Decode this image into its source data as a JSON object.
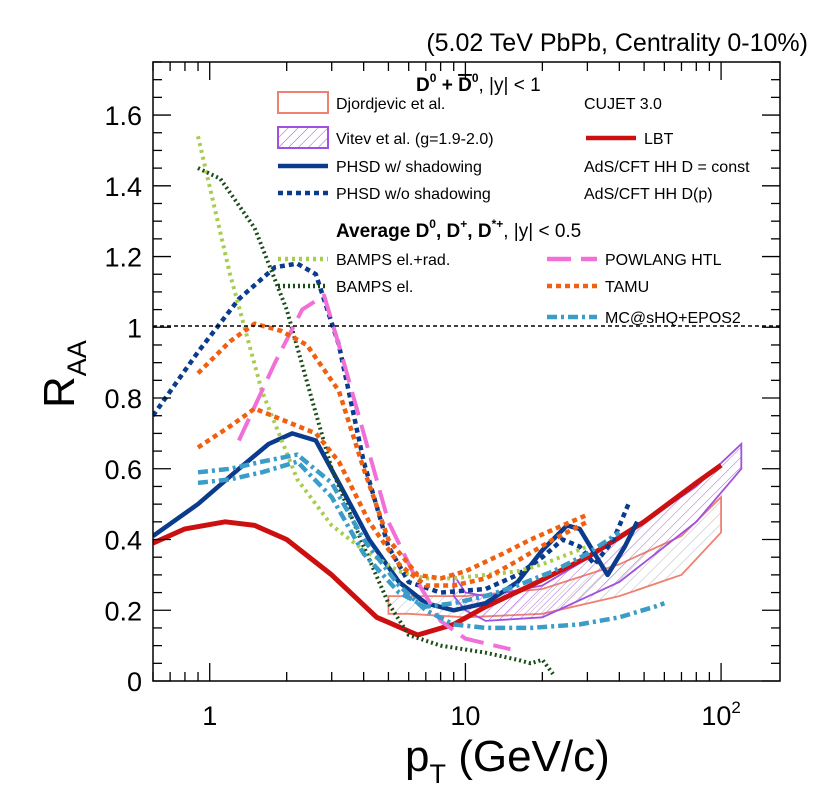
{
  "chart_data": {
    "type": "line",
    "title": "(5.02 TeV PbPb, Centrality 0-10%)",
    "xlabel": "p_T (GeV/c)",
    "ylabel": "R_AA",
    "xscale": "log",
    "xlim": [
      0.6,
      170
    ],
    "ylim": [
      0,
      1.75
    ],
    "x_ticks": [
      {
        "value": 1,
        "label": "1"
      },
      {
        "value": 10,
        "label": "10"
      },
      {
        "value": 100,
        "label": "10",
        "exponent": "2"
      }
    ],
    "y_ticks": [
      {
        "value": 0,
        "label": "0"
      },
      {
        "value": 0.2,
        "label": "0.2"
      },
      {
        "value": 0.4,
        "label": "0.4"
      },
      {
        "value": 0.6,
        "label": "0.6"
      },
      {
        "value": 0.8,
        "label": "0.8"
      },
      {
        "value": 1.0,
        "label": "1"
      },
      {
        "value": 1.2,
        "label": "1.2"
      },
      {
        "value": 1.4,
        "label": "1.4"
      },
      {
        "value": 1.6,
        "label": "1.6"
      }
    ],
    "reference_line": {
      "y": 1.0,
      "style": "dashed"
    },
    "legend_header_1": {
      "base": "D",
      "sup1": "0",
      "mid": " + ",
      "bar": "D",
      "sup2": "0",
      "tail": ", |y| < 1"
    },
    "legend_header_2": {
      "text1": "Average D",
      "s1": "0",
      "text2": ", D",
      "s2": "+",
      "text3": ", D",
      "s3": "*+",
      "text4": ", |y| < 0.5"
    },
    "series": [
      {
        "name": "Djordjevic et al.",
        "kind": "band",
        "color": "#f08070",
        "upper": [
          [
            5,
            0.24
          ],
          [
            6,
            0.24
          ],
          [
            10,
            0.24
          ],
          [
            20,
            0.26
          ],
          [
            40,
            0.33
          ],
          [
            70,
            0.41
          ],
          [
            100,
            0.52
          ]
        ],
        "lower": [
          [
            5,
            0.19
          ],
          [
            6,
            0.19
          ],
          [
            10,
            0.18
          ],
          [
            20,
            0.19
          ],
          [
            40,
            0.24
          ],
          [
            70,
            0.3
          ],
          [
            100,
            0.42
          ]
        ]
      },
      {
        "name": "Vitev et al. (g=1.9-2.0)",
        "kind": "band",
        "color": "#a050e0",
        "upper": [
          [
            9,
            0.3
          ],
          [
            10,
            0.25
          ],
          [
            12,
            0.24
          ],
          [
            20,
            0.27
          ],
          [
            40,
            0.4
          ],
          [
            80,
            0.55
          ],
          [
            120,
            0.67
          ]
        ],
        "lower": [
          [
            9,
            0.24
          ],
          [
            10,
            0.2
          ],
          [
            12,
            0.17
          ],
          [
            20,
            0.18
          ],
          [
            40,
            0.28
          ],
          [
            80,
            0.45
          ],
          [
            120,
            0.6
          ]
        ]
      },
      {
        "name": "CUJET 3.0",
        "kind": "line",
        "color": "#000000",
        "dash": "none",
        "points": []
      },
      {
        "name": "LBT",
        "kind": "line",
        "color": "#cc1010",
        "dash": "none",
        "width": 5,
        "points": [
          [
            0.6,
            0.39
          ],
          [
            0.8,
            0.43
          ],
          [
            1.15,
            0.45
          ],
          [
            1.5,
            0.44
          ],
          [
            2,
            0.4
          ],
          [
            3,
            0.3
          ],
          [
            4.5,
            0.18
          ],
          [
            6.5,
            0.13
          ],
          [
            9,
            0.16
          ],
          [
            12,
            0.21
          ],
          [
            18,
            0.27
          ],
          [
            30,
            0.35
          ],
          [
            50,
            0.45
          ],
          [
            80,
            0.56
          ],
          [
            100,
            0.61
          ]
        ]
      },
      {
        "name": "PHSD w/ shadowing",
        "kind": "line",
        "color": "#0b3b8c",
        "dash": "none",
        "width": 4.5,
        "points": [
          [
            0.6,
            0.41
          ],
          [
            0.9,
            0.5
          ],
          [
            1.3,
            0.6
          ],
          [
            1.7,
            0.67
          ],
          [
            2.1,
            0.7
          ],
          [
            2.6,
            0.68
          ],
          [
            3.2,
            0.56
          ],
          [
            4.2,
            0.4
          ],
          [
            5.5,
            0.28
          ],
          [
            7,
            0.22
          ],
          [
            9,
            0.2
          ],
          [
            12,
            0.22
          ],
          [
            16,
            0.28
          ],
          [
            20,
            0.37
          ],
          [
            25,
            0.44
          ],
          [
            28,
            0.43
          ],
          [
            32,
            0.36
          ],
          [
            36,
            0.3
          ],
          [
            42,
            0.38
          ],
          [
            47,
            0.45
          ]
        ]
      },
      {
        "name": "PHSD w/o shadowing",
        "kind": "line",
        "color": "#0b3b8c",
        "dash": "5 4",
        "width": 4.5,
        "points": [
          [
            0.6,
            0.75
          ],
          [
            0.9,
            0.93
          ],
          [
            1.3,
            1.08
          ],
          [
            1.8,
            1.17
          ],
          [
            2.2,
            1.18
          ],
          [
            2.6,
            1.15
          ],
          [
            3.2,
            0.95
          ],
          [
            4,
            0.62
          ],
          [
            5,
            0.38
          ],
          [
            6,
            0.28
          ],
          [
            8,
            0.25
          ],
          [
            12,
            0.26
          ],
          [
            16,
            0.3
          ],
          [
            20,
            0.35
          ],
          [
            24,
            0.4
          ],
          [
            28,
            0.38
          ],
          [
            32,
            0.33
          ],
          [
            38,
            0.4
          ],
          [
            44,
            0.51
          ]
        ]
      },
      {
        "name": "AdS/CFT HH D = const",
        "kind": "line",
        "color": "#000000",
        "dash": "none",
        "points": []
      },
      {
        "name": "AdS/CFT HH D(p)",
        "kind": "line",
        "color": "#000000",
        "dash": "none",
        "points": []
      },
      {
        "name": "BAMPS el.+rad.",
        "kind": "line",
        "color": "#a8cc50",
        "dash": "3 4",
        "width": 4,
        "points": [
          [
            0.9,
            1.54
          ],
          [
            1.2,
            1.15
          ],
          [
            1.6,
            0.82
          ],
          [
            2.2,
            0.57
          ],
          [
            3,
            0.44
          ],
          [
            4,
            0.37
          ],
          [
            5.5,
            0.31
          ],
          [
            7,
            0.29
          ],
          [
            9,
            0.29
          ],
          [
            12,
            0.3
          ],
          [
            16,
            0.31
          ],
          [
            20,
            0.33
          ],
          [
            30,
            0.38
          ]
        ]
      },
      {
        "name": "BAMPS el.",
        "kind": "line",
        "color": "#1a4d1a",
        "dash": "2 3",
        "width": 4,
        "points": [
          [
            0.9,
            1.45
          ],
          [
            1.1,
            1.42
          ],
          [
            1.5,
            1.28
          ],
          [
            2,
            1.05
          ],
          [
            2.5,
            0.8
          ],
          [
            3,
            0.6
          ],
          [
            4,
            0.38
          ],
          [
            5,
            0.22
          ],
          [
            6,
            0.13
          ],
          [
            8,
            0.1
          ],
          [
            12,
            0.08
          ],
          [
            16,
            0.06
          ],
          [
            18,
            0.05
          ],
          [
            20,
            0.06
          ],
          [
            22,
            0.02
          ]
        ]
      },
      {
        "name": "POWLANG HTL",
        "kind": "line",
        "color": "#f070d8",
        "dash": "24 10",
        "width": 4,
        "points": [
          [
            1.3,
            0.68
          ],
          [
            1.8,
            0.9
          ],
          [
            2.3,
            1.05
          ],
          [
            2.8,
            1.09
          ],
          [
            3.2,
            0.95
          ],
          [
            4,
            0.7
          ],
          [
            5,
            0.45
          ],
          [
            6.5,
            0.28
          ],
          [
            8,
            0.17
          ],
          [
            10,
            0.12
          ],
          [
            13,
            0.1
          ],
          [
            15,
            0.09
          ]
        ]
      },
      {
        "name": "TAMU",
        "kind": "line",
        "color": "#f06010",
        "dash": "5 4",
        "width": 4.5,
        "points": [
          [
            0.9,
            0.66
          ],
          [
            1.2,
            0.72
          ],
          [
            1.5,
            0.77
          ],
          [
            1.9,
            0.74
          ],
          [
            2.6,
            0.7
          ],
          [
            3.2,
            0.62
          ],
          [
            4.2,
            0.45
          ],
          [
            5.5,
            0.33
          ],
          [
            7,
            0.27
          ],
          [
            9,
            0.27
          ],
          [
            12,
            0.29
          ],
          [
            16,
            0.34
          ],
          [
            22,
            0.4
          ],
          [
            30,
            0.45
          ]
        ]
      },
      {
        "name": "TAMU",
        "kind": "line",
        "color": "#f06010",
        "dash": "5 4",
        "width": 4.5,
        "no_legend": true,
        "points": [
          [
            0.9,
            0.87
          ],
          [
            1.2,
            0.96
          ],
          [
            1.5,
            1.01
          ],
          [
            1.9,
            0.99
          ],
          [
            2.4,
            0.95
          ],
          [
            3.2,
            0.82
          ],
          [
            4,
            0.6
          ],
          [
            5,
            0.4
          ],
          [
            6.5,
            0.3
          ],
          [
            8,
            0.29
          ],
          [
            10,
            0.31
          ],
          [
            14,
            0.36
          ],
          [
            18,
            0.4
          ],
          [
            24,
            0.44
          ],
          [
            30,
            0.47
          ]
        ]
      },
      {
        "name": "MC@sHQ+EPOS2",
        "kind": "line",
        "color": "#3a9cc8",
        "dash": "10 4 3 4",
        "width": 4.5,
        "points": [
          [
            0.9,
            0.59
          ],
          [
            1.2,
            0.6
          ],
          [
            1.6,
            0.62
          ],
          [
            2.2,
            0.64
          ],
          [
            3,
            0.56
          ],
          [
            4,
            0.4
          ],
          [
            5.5,
            0.27
          ],
          [
            7,
            0.2
          ],
          [
            9,
            0.16
          ],
          [
            12,
            0.15
          ],
          [
            18,
            0.15
          ],
          [
            28,
            0.16
          ],
          [
            40,
            0.18
          ],
          [
            55,
            0.21
          ],
          [
            60,
            0.22
          ]
        ]
      },
      {
        "name": "MC@sHQ+EPOS2",
        "kind": "line",
        "color": "#3a9cc8",
        "dash": "10 4 3 4",
        "width": 4.5,
        "no_legend": true,
        "points": [
          [
            0.9,
            0.56
          ],
          [
            1.2,
            0.57
          ],
          [
            1.6,
            0.59
          ],
          [
            2.2,
            0.62
          ],
          [
            3,
            0.52
          ],
          [
            4,
            0.36
          ],
          [
            5.5,
            0.25
          ],
          [
            7,
            0.21
          ],
          [
            9,
            0.22
          ],
          [
            12,
            0.24
          ],
          [
            16,
            0.27
          ],
          [
            22,
            0.31
          ],
          [
            30,
            0.36
          ],
          [
            40,
            0.42
          ]
        ]
      }
    ],
    "legend": [
      {
        "label": "Djordjevic et al.",
        "swatch": "box",
        "color": "#f08070"
      },
      {
        "label": "CUJET 3.0",
        "swatch": "none"
      },
      {
        "label": "Vitev et al. (g=1.9-2.0)",
        "swatch": "hatched-box",
        "color": "#a050e0"
      },
      {
        "label": "LBT",
        "swatch": "line",
        "color": "#cc1010",
        "dash": "none"
      },
      {
        "label": "PHSD w/ shadowing",
        "swatch": "line",
        "color": "#0b3b8c",
        "dash": "none"
      },
      {
        "label": "AdS/CFT HH D = const",
        "swatch": "none"
      },
      {
        "label": "PHSD w/o shadowing",
        "swatch": "line",
        "color": "#0b3b8c",
        "dash": "5 4"
      },
      {
        "label": "AdS/CFT HH D(p)",
        "swatch": "none"
      },
      {
        "label": "BAMPS el.+rad.",
        "swatch": "line",
        "color": "#a8cc50",
        "dash": "3 4"
      },
      {
        "label": "POWLANG HTL",
        "swatch": "line",
        "color": "#f070d8",
        "dash": "24 10"
      },
      {
        "label": "BAMPS el.",
        "swatch": "line",
        "color": "#1a4d1a",
        "dash": "2 3"
      },
      {
        "label": "TAMU",
        "swatch": "line",
        "color": "#f06010",
        "dash": "5 4"
      },
      {
        "label": "MC@sHQ+EPOS2",
        "swatch": "line",
        "color": "#3a9cc8",
        "dash": "10 4 3 4"
      }
    ]
  }
}
